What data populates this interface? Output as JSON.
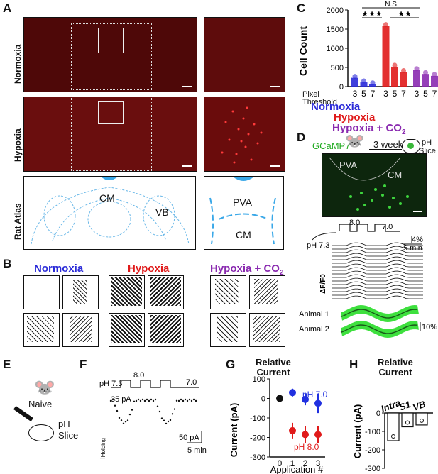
{
  "panels": {
    "A": "A",
    "B": "B",
    "C": "C",
    "D": "D",
    "E": "E",
    "F": "F",
    "G": "G",
    "H": "H"
  },
  "panelA": {
    "row_normoxia": "Normoxia",
    "row_hypoxia": "Hypoxia",
    "row_atlas": "Rat Atlas",
    "atlas_left": [
      "CM",
      "VB"
    ],
    "atlas_right": [
      "PVA",
      "CM"
    ]
  },
  "panelB": {
    "normoxia": "Normoxia",
    "hypoxia": "Hypoxia",
    "hypoxia_co2": "Hypoxia + CO",
    "co2_sub": "2"
  },
  "panelC": {
    "chart_data": {
      "type": "bar",
      "ylabel": "Cell Count",
      "ylim": [
        0,
        2000
      ],
      "yticks": [
        "0",
        "500",
        "1000",
        "1500",
        "2000"
      ],
      "tick_labels": [
        "3",
        "5",
        "7",
        "3",
        "5",
        "7",
        "3",
        "5",
        "7"
      ],
      "groups": [
        "Normoxia",
        "Hypoxia",
        "Hypoxia + CO2"
      ],
      "threshold_label": "Pixel Threshold",
      "colors": [
        "#2a2ad8",
        "#e01a1a",
        "#8a2ab0"
      ],
      "series": [
        {
          "name": "Normoxia",
          "values": [
            230,
            110,
            60
          ]
        },
        {
          "name": "Hypoxia",
          "values": [
            1580,
            520,
            380
          ]
        },
        {
          "name": "Hypoxia + CO2",
          "values": [
            430,
            330,
            280
          ]
        }
      ],
      "significance": [
        "N.S.",
        "★★★",
        "★★"
      ]
    },
    "group_normoxia": "Normoxia",
    "group_hypoxia": "Hypoxia",
    "group_hypoxia_co2": "Hypoxia + CO",
    "co2_sub": "2",
    "pixel": "Pixel",
    "threshold": "Threshold"
  },
  "panelD": {
    "gcamp": "GCaMP7",
    "weeks": "3 weeks",
    "ph": "pH",
    "slice": "Slice",
    "pva": "PVA",
    "cm": "CM",
    "ph_80": "8.0",
    "ph_70": "7.0",
    "ph_73": "pH 7.3",
    "scale_pct": "4%",
    "scale_min": "5 min",
    "ylab": "ΔF/F0",
    "animal1": "Animal 1",
    "animal2": "Animal 2",
    "scale_pct2": "10%"
  },
  "panelE": {
    "naive": "Naive",
    "ph": "pH",
    "slice": "Slice"
  },
  "panelF": {
    "ph_73": "pH 7.3",
    "ph_80": "8.0",
    "ph_70": "7.0",
    "pa35": "35 pA",
    "iholding": "I",
    "iholding_sub": "Holding",
    "scale_pa": "50 pA",
    "scale_min": "5 min"
  },
  "panelG": {
    "chart_data": {
      "type": "scatter",
      "title": "Relative Current",
      "xlabel": "Application #",
      "ylabel": "Current (pA)",
      "ylim": [
        -300,
        100
      ],
      "yticks": [
        "100",
        "0",
        "-100",
        "-200",
        "-300"
      ],
      "xticks": [
        "0",
        "1",
        "2",
        "3"
      ],
      "series": [
        {
          "name": "pH 7.0",
          "color": "#2030e0",
          "x": [
            1,
            2,
            3
          ],
          "y": [
            30,
            -5,
            -25
          ],
          "err": [
            20,
            30,
            50
          ]
        },
        {
          "name": "pH 8.0",
          "color": "#e01a1a",
          "x": [
            1,
            2,
            3
          ],
          "y": [
            -165,
            -185,
            -185
          ],
          "err": [
            40,
            45,
            45
          ]
        },
        {
          "name": "",
          "color": "#111111",
          "x": [
            0
          ],
          "y": [
            0
          ],
          "err": [
            0
          ]
        }
      ]
    },
    "title1": "Relative",
    "title2": "Current",
    "ph70": "pH 7.0",
    "ph80": "pH 8.0"
  },
  "panelH": {
    "chart_data": {
      "type": "bar",
      "title": "Relative Current",
      "ylabel": "Current (pA)",
      "ylim": [
        -300,
        0
      ],
      "yticks": [
        "0",
        "-100",
        "-200",
        "-300"
      ],
      "categories": [
        "Intra",
        "S1",
        "VB"
      ],
      "values": [
        -150,
        -75,
        -65
      ]
    },
    "title1": "Relative",
    "title2": "Current"
  }
}
